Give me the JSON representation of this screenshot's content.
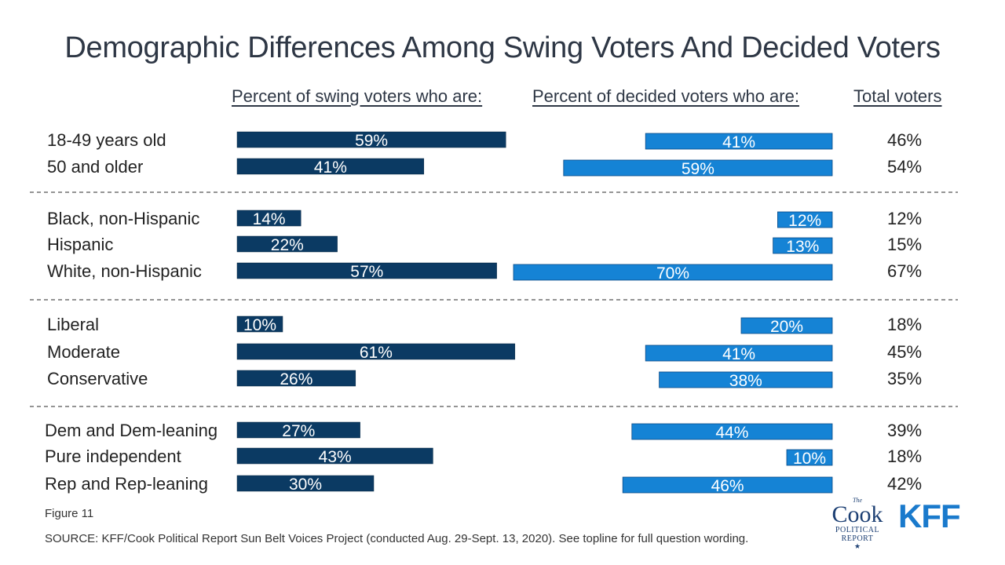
{
  "title": "Demographic Differences Among Swing Voters And Decided Voters",
  "headers": {
    "swing": "Percent of swing voters who are:",
    "decided": "Percent of decided voters who are:",
    "total": "Total voters"
  },
  "colors": {
    "swing": "#0b3a63",
    "decided": "#1583d5",
    "divider": "#555555"
  },
  "chart_data": {
    "type": "bar",
    "groups": [
      {
        "rows": [
          {
            "label": "18-49 years old",
            "swing": 59,
            "decided": 41,
            "total": 46
          },
          {
            "label": "50 and older",
            "swing": 41,
            "decided": 59,
            "total": 54
          }
        ]
      },
      {
        "rows": [
          {
            "label": "Black, non-Hispanic",
            "swing": 14,
            "decided": 12,
            "total": 12
          },
          {
            "label": "Hispanic",
            "swing": 22,
            "decided": 13,
            "total": 15
          },
          {
            "label": "White, non-Hispanic",
            "swing": 57,
            "decided": 70,
            "total": 67
          }
        ]
      },
      {
        "rows": [
          {
            "label": "Liberal",
            "swing": 10,
            "decided": 20,
            "total": 18
          },
          {
            "label": "Moderate",
            "swing": 61,
            "decided": 41,
            "total": 45
          },
          {
            "label": "Conservative",
            "swing": 26,
            "decided": 38,
            "total": 35
          }
        ]
      },
      {
        "rows": [
          {
            "label": "Dem and Dem-leaning",
            "swing": 27,
            "decided": 44,
            "total": 39
          },
          {
            "label": "Pure independent",
            "swing": 43,
            "decided": 10,
            "total": 18
          },
          {
            "label": "Rep and Rep-leaning",
            "swing": 30,
            "decided": 46,
            "total": 42
          }
        ]
      }
    ],
    "value_suffix": "%"
  },
  "figure_label": "Figure 11",
  "source": "SOURCE: KFF/Cook Political Report Sun Belt Voices Project (conducted Aug. 29-Sept. 13, 2020). See topline for full question wording.",
  "logos": {
    "cook_the": "The",
    "cook_name": "Cook",
    "cook_line1": "POLITICAL",
    "cook_line2": "REPORT",
    "cook_star": "★",
    "kff": "KFF"
  }
}
